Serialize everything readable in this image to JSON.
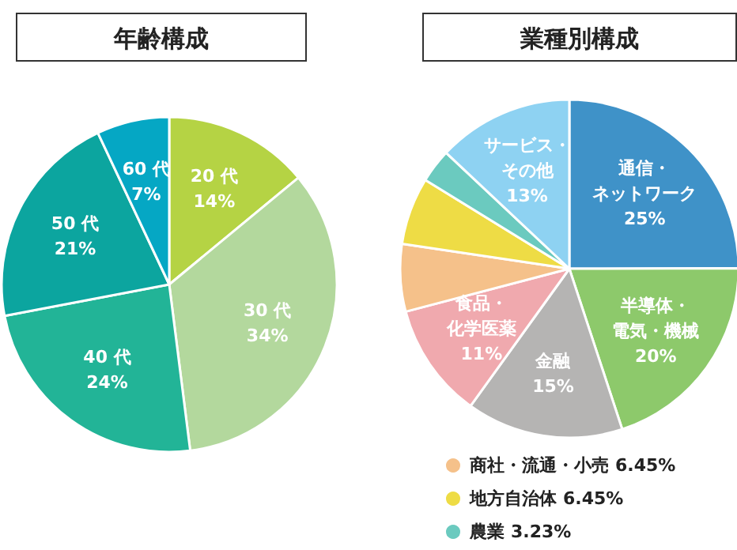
{
  "chart_data": [
    {
      "type": "pie",
      "title": "年齢構成",
      "categories": [
        "20 代",
        "30 代",
        "40 代",
        "50 代",
        "60 代"
      ],
      "values": [
        14,
        34,
        24,
        21,
        7
      ],
      "colors": [
        "#b5d344",
        "#b3d89d",
        "#22b497",
        "#0ca59f",
        "#05a7c4"
      ],
      "value_labels": [
        "14%",
        "34%",
        "24%",
        "21%",
        "7%"
      ]
    },
    {
      "type": "pie",
      "title": "業種別構成",
      "categories": [
        "通信・ネットワーク",
        "半導体・電気・機械",
        "金融",
        "食品・化学医薬",
        "商社・流通・小売",
        "地方自治体",
        "農業",
        "サービス・その他"
      ],
      "values": [
        25,
        20,
        15,
        11,
        6.45,
        6.45,
        3.23,
        13
      ],
      "colors": [
        "#3f92c8",
        "#8dc96b",
        "#b5b4b3",
        "#f0a9ae",
        "#f5c18a",
        "#eedc45",
        "#6bcabf",
        "#8ed2f2"
      ],
      "value_labels": [
        "25%",
        "20%",
        "15%",
        "11%",
        "6.45%",
        "6.45%",
        "3.23%",
        "13%"
      ],
      "legend": "bottom"
    }
  ]
}
